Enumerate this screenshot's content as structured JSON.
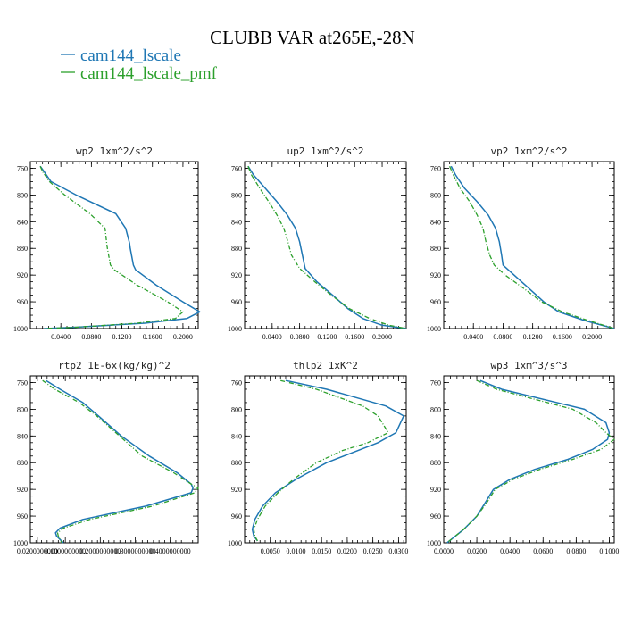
{
  "figure": {
    "title": "CLUBB VAR at265E,-28N",
    "legend": [
      {
        "label": "cam144_lscale",
        "color": "#1f77b4",
        "dash": "solid"
      },
      {
        "label": "cam144_lscale_pmf",
        "color": "#2ca02c",
        "dash": "dashed"
      }
    ]
  },
  "chart_data": [
    {
      "type": "line",
      "title": "wp2  1xm^2/s^2",
      "xlim": [
        0.0,
        0.22
      ],
      "ylim": [
        750,
        1000
      ],
      "y_inverted": true,
      "xticks": [
        "0.0400",
        "0.0800",
        "0.1200",
        "0.1600",
        "0.2000"
      ],
      "xtick_values": [
        0.04,
        0.08,
        0.12,
        0.16,
        0.2
      ],
      "yticks": [
        760,
        800,
        840,
        880,
        920,
        960,
        1000
      ],
      "y": [
        757,
        765,
        780,
        800,
        828,
        850,
        872,
        880,
        905,
        912,
        935,
        960,
        975,
        985,
        992,
        998,
        1000
      ],
      "series": [
        {
          "name": "cam144_lscale",
          "color": "#1f77b4",
          "dash": "solid",
          "values": [
            0.013,
            0.018,
            0.027,
            0.06,
            0.112,
            0.125,
            0.13,
            0.131,
            0.135,
            0.138,
            0.165,
            0.2,
            0.222,
            0.205,
            0.15,
            0.06,
            0.018
          ]
        },
        {
          "name": "cam144_lscale_pmf",
          "color": "#2ca02c",
          "dash": "dashed",
          "values": [
            0.013,
            0.016,
            0.025,
            0.045,
            0.078,
            0.098,
            0.1,
            0.101,
            0.105,
            0.11,
            0.14,
            0.18,
            0.2,
            0.19,
            0.14,
            0.06,
            0.018
          ]
        }
      ]
    },
    {
      "type": "line",
      "title": "up2  1xm^2/s^2",
      "xlim": [
        0.0,
        0.235
      ],
      "ylim": [
        750,
        1000
      ],
      "y_inverted": true,
      "xticks": [
        "0.0400",
        "0.0800",
        "0.1200",
        "0.1600",
        "0.2000"
      ],
      "xtick_values": [
        0.04,
        0.08,
        0.12,
        0.16,
        0.2
      ],
      "yticks": [
        760,
        800,
        840,
        880,
        920,
        960,
        1000
      ],
      "y": [
        757,
        770,
        790,
        810,
        830,
        850,
        870,
        890,
        910,
        930,
        950,
        970,
        985,
        995,
        1000
      ],
      "series": [
        {
          "name": "cam144_lscale",
          "color": "#1f77b4",
          "dash": "solid",
          "values": [
            0.005,
            0.013,
            0.03,
            0.047,
            0.062,
            0.074,
            0.08,
            0.084,
            0.088,
            0.105,
            0.128,
            0.15,
            0.172,
            0.2,
            0.235
          ]
        },
        {
          "name": "cam144_lscale_pmf",
          "color": "#2ca02c",
          "dash": "dashed",
          "values": [
            0.005,
            0.01,
            0.022,
            0.035,
            0.047,
            0.057,
            0.063,
            0.068,
            0.08,
            0.102,
            0.126,
            0.152,
            0.182,
            0.21,
            0.235
          ]
        }
      ]
    },
    {
      "type": "line",
      "title": "vp2  1xm^2/s^2",
      "xlim": [
        0.0,
        0.23
      ],
      "ylim": [
        750,
        1000
      ],
      "y_inverted": true,
      "xticks": [
        "0.0400",
        "0.0800",
        "0.1200",
        "0.1600",
        "0.2000"
      ],
      "xtick_values": [
        0.04,
        0.08,
        0.12,
        0.16,
        0.2
      ],
      "yticks": [
        760,
        800,
        840,
        880,
        920,
        960,
        1000
      ],
      "y": [
        757,
        770,
        790,
        810,
        830,
        850,
        870,
        890,
        905,
        920,
        940,
        960,
        975,
        988,
        1000
      ],
      "series": [
        {
          "name": "cam144_lscale",
          "color": "#1f77b4",
          "dash": "solid",
          "values": [
            0.01,
            0.016,
            0.028,
            0.045,
            0.06,
            0.07,
            0.075,
            0.078,
            0.08,
            0.095,
            0.115,
            0.135,
            0.155,
            0.19,
            0.23
          ]
        },
        {
          "name": "cam144_lscale_pmf",
          "color": "#2ca02c",
          "dash": "dashed",
          "values": [
            0.008,
            0.013,
            0.022,
            0.035,
            0.045,
            0.053,
            0.057,
            0.062,
            0.068,
            0.083,
            0.108,
            0.132,
            0.16,
            0.195,
            0.23
          ]
        }
      ]
    },
    {
      "type": "line",
      "title": "rtp2  1E-6x(kg/kg)^2",
      "xlim": [
        0.0,
        0.48
      ],
      "ylim": [
        750,
        1000
      ],
      "y_inverted": true,
      "xticks": [
        "0.0200000000",
        "0.1000000000",
        "0.2000000000",
        "0.3000000000",
        "0.4000000000"
      ],
      "xtick_values": [
        0.02,
        0.1,
        0.2,
        0.3,
        0.4
      ],
      "yticks": [
        760,
        800,
        840,
        880,
        920,
        960,
        1000
      ],
      "y": [
        757,
        770,
        790,
        810,
        840,
        870,
        895,
        912,
        918,
        925,
        945,
        965,
        978,
        985,
        990,
        995,
        1000
      ],
      "series": [
        {
          "name": "cam144_lscale",
          "color": "#1f77b4",
          "dash": "solid",
          "values": [
            0.045,
            0.085,
            0.15,
            0.195,
            0.26,
            0.34,
            0.42,
            0.46,
            0.465,
            0.46,
            0.33,
            0.15,
            0.085,
            0.072,
            0.075,
            0.085,
            0.095
          ]
        },
        {
          "name": "cam144_lscale_pmf",
          "color": "#2ca02c",
          "dash": "dashed",
          "values": [
            0.035,
            0.07,
            0.14,
            0.19,
            0.255,
            0.32,
            0.41,
            0.46,
            0.48,
            0.47,
            0.35,
            0.17,
            0.095,
            0.078,
            0.08,
            0.085,
            0.09
          ]
        }
      ]
    },
    {
      "type": "line",
      "title": "thlp2  1xK^2",
      "xlim": [
        0.0,
        0.0315
      ],
      "ylim": [
        750,
        1000
      ],
      "y_inverted": true,
      "xticks": [
        "0.0050",
        "0.0100",
        "0.0150",
        "0.0200",
        "0.0250",
        "0.0300"
      ],
      "xtick_values": [
        0.005,
        0.01,
        0.015,
        0.02,
        0.025,
        0.03
      ],
      "yticks": [
        760,
        800,
        840,
        880,
        920,
        960,
        1000
      ],
      "y": [
        757,
        770,
        795,
        810,
        835,
        850,
        862,
        880,
        905,
        925,
        945,
        965,
        980,
        990,
        997
      ],
      "series": [
        {
          "name": "cam144_lscale",
          "color": "#1f77b4",
          "dash": "solid",
          "values": [
            0.008,
            0.016,
            0.0275,
            0.031,
            0.0295,
            0.026,
            0.022,
            0.016,
            0.01,
            0.006,
            0.0035,
            0.002,
            0.0015,
            0.0018,
            0.0025
          ]
        },
        {
          "name": "cam144_lscale_pmf",
          "color": "#2ca02c",
          "dash": "dashed",
          "values": [
            0.007,
            0.014,
            0.023,
            0.026,
            0.028,
            0.024,
            0.019,
            0.014,
            0.0095,
            0.0065,
            0.004,
            0.0025,
            0.0018,
            0.002,
            0.0025
          ]
        }
      ]
    },
    {
      "type": "line",
      "title": "wp3  1xm^3/s^3",
      "xlim": [
        0.0,
        0.103
      ],
      "ylim": [
        750,
        1000
      ],
      "y_inverted": true,
      "xticks": [
        "0.0000",
        "0.0200",
        "0.0400",
        "0.0600",
        "0.0800",
        "0.1000"
      ],
      "xtick_values": [
        0.0,
        0.02,
        0.04,
        0.06,
        0.08,
        0.1
      ],
      "yticks": [
        760,
        800,
        840,
        880,
        920,
        960,
        1000
      ],
      "y": [
        757,
        770,
        800,
        820,
        835,
        845,
        860,
        875,
        890,
        905,
        920,
        940,
        960,
        980,
        1000
      ],
      "series": [
        {
          "name": "cam144_lscale",
          "color": "#1f77b4",
          "dash": "solid",
          "values": [
            0.022,
            0.035,
            0.085,
            0.098,
            0.1,
            0.099,
            0.09,
            0.075,
            0.055,
            0.04,
            0.03,
            0.025,
            0.02,
            0.012,
            0.002
          ]
        },
        {
          "name": "cam144_lscale_pmf",
          "color": "#2ca02c",
          "dash": "dashed",
          "values": [
            0.02,
            0.032,
            0.078,
            0.092,
            0.098,
            0.103,
            0.095,
            0.078,
            0.058,
            0.042,
            0.031,
            0.026,
            0.02,
            0.012,
            0.002
          ]
        }
      ]
    }
  ]
}
